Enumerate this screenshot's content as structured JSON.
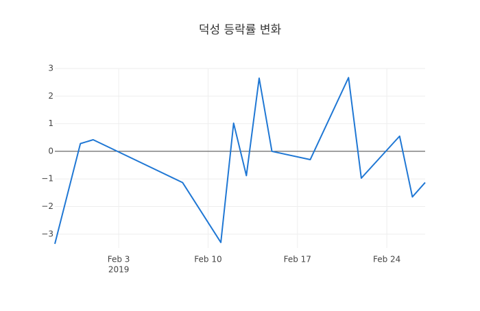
{
  "chart_data": {
    "type": "line",
    "title": "덕성 등락률 변화",
    "x": [
      "2019-01-29",
      "2019-01-31",
      "2019-02-01",
      "2019-02-08",
      "2019-02-11",
      "2019-02-12",
      "2019-02-13",
      "2019-02-14",
      "2019-02-15",
      "2019-02-18",
      "2019-02-21",
      "2019-02-22",
      "2019-02-25",
      "2019-02-26",
      "2019-02-27"
    ],
    "series": [
      {
        "color": "#1f77d4",
        "values": [
          -3.35,
          0.28,
          0.42,
          -1.13,
          -3.3,
          1.02,
          -0.88,
          2.65,
          0.0,
          -0.3,
          2.67,
          -0.97,
          0.55,
          -1.65,
          -1.13
        ]
      }
    ],
    "xlim": [
      "2019-01-29",
      "2019-02-27"
    ],
    "xticks": [
      {
        "value": "2019-02-03",
        "label": "Feb 3",
        "year": "2019"
      },
      {
        "value": "2019-02-10",
        "label": "Feb 10"
      },
      {
        "value": "2019-02-17",
        "label": "Feb 17"
      },
      {
        "value": "2019-02-24",
        "label": "Feb 24"
      }
    ],
    "ylim": [
      -3.5,
      3
    ],
    "yticks": [
      {
        "value": -3,
        "label": "−3"
      },
      {
        "value": -2,
        "label": "−2"
      },
      {
        "value": -1,
        "label": "−1"
      },
      0,
      1,
      2,
      3
    ],
    "grid": true,
    "zeroline": true
  }
}
